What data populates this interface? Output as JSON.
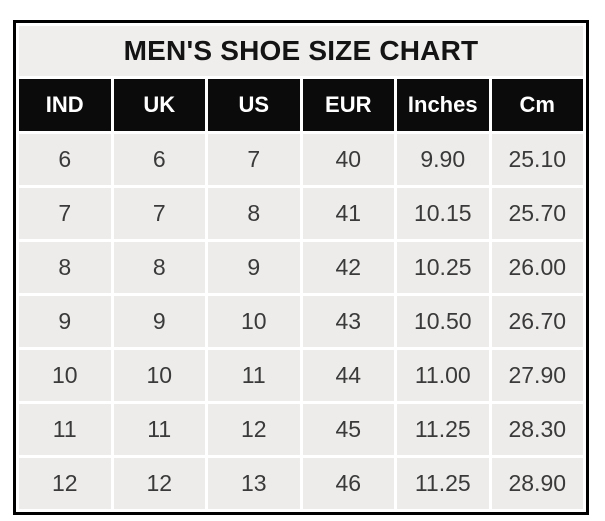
{
  "chart_data": {
    "type": "table",
    "title": "MEN'S SHOE SIZE CHART",
    "columns": [
      "IND",
      "UK",
      "US",
      "EUR",
      "Inches",
      "Cm"
    ],
    "rows": [
      [
        "6",
        "6",
        "7",
        "40",
        "9.90",
        "25.10"
      ],
      [
        "7",
        "7",
        "8",
        "41",
        "10.15",
        "25.70"
      ],
      [
        "8",
        "8",
        "9",
        "42",
        "10.25",
        "26.00"
      ],
      [
        "9",
        "9",
        "10",
        "43",
        "10.50",
        "26.70"
      ],
      [
        "10",
        "10",
        "11",
        "44",
        "11.00",
        "27.90"
      ],
      [
        "11",
        "11",
        "12",
        "45",
        "11.25",
        "28.30"
      ],
      [
        "12",
        "12",
        "13",
        "46",
        "11.25",
        "28.90"
      ]
    ],
    "layout": {
      "legend": "none",
      "grid": "white gaps between cells",
      "border": "black outer frame"
    },
    "colors": {
      "page_background": "#ffffff",
      "outer_border": "#000000",
      "title_background": "#efeeec",
      "title_text": "#141414",
      "header_background": "#0b0b0b",
      "header_text": "#ffffff",
      "cell_background": "#edecea",
      "cell_text": "#3a3a3a",
      "grid_lines": "#ffffff"
    }
  }
}
